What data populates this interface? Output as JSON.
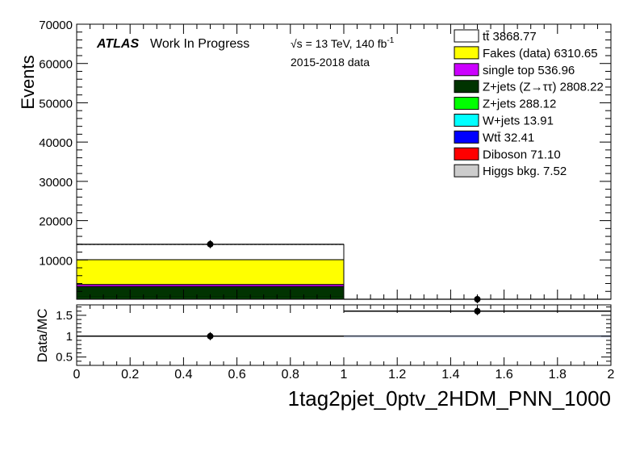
{
  "chart_data": [
    {
      "type": "bar",
      "stacked": true,
      "ylabel": "Events",
      "ylim": [
        0,
        70000
      ],
      "xlim": [
        0,
        2
      ],
      "yticks": [
        "10000",
        "20000",
        "30000",
        "40000",
        "50000",
        "60000",
        "70000"
      ],
      "bins": [
        [
          0,
          1
        ],
        [
          1,
          2
        ]
      ],
      "labels": {
        "atlas": "ATLAS",
        "status": "Work In Progress",
        "energy": "√s = 13 TeV, 140 fb",
        "energy_sup": "-1",
        "data_period": "2015-2018 data"
      },
      "series": [
        {
          "name": "Higgs bkg.",
          "yield": "7.52",
          "values": [
            7.52,
            0
          ],
          "color": "#cccccc"
        },
        {
          "name": "Diboson",
          "yield": "71.10",
          "values": [
            71.1,
            0
          ],
          "color": "#ff0000"
        },
        {
          "name": "Wtt̄",
          "yield": "32.41",
          "values": [
            32.41,
            0
          ],
          "color": "#0000ff"
        },
        {
          "name": "W+jets",
          "yield": "13.91",
          "values": [
            13.91,
            0
          ],
          "color": "#00ffff"
        },
        {
          "name": "Z+jets",
          "yield": "288.12",
          "values": [
            288.12,
            0
          ],
          "color": "#00ff00"
        },
        {
          "name": "Z+jets (Z→ττ)",
          "yield": "2808.22",
          "values": [
            2808.22,
            0
          ],
          "color": "#003300"
        },
        {
          "name": "single top",
          "yield": "536.96",
          "values": [
            536.96,
            0
          ],
          "color": "#cc00ff"
        },
        {
          "name": "Fakes (data)",
          "yield": "6310.65",
          "values": [
            6310.65,
            0
          ],
          "color": "#ffff00"
        },
        {
          "name": "tt̄",
          "yield": "3868.77",
          "values": [
            3868.77,
            0
          ],
          "color": "#ffffff"
        }
      ],
      "data_points": [
        {
          "x": 0.5,
          "y": 14000
        },
        {
          "x": 1.5,
          "y": 0
        }
      ],
      "legend_position": "top-right"
    },
    {
      "type": "scatter",
      "ylabel": "Data/MC",
      "ylim": [
        0.3,
        1.75
      ],
      "xlim": [
        0,
        2
      ],
      "yticks": [
        "0.5",
        "1",
        "1.5"
      ],
      "xticks": [
        "0",
        "0.2",
        "0.4",
        "0.6",
        "0.8",
        "1",
        "1.2",
        "1.4",
        "1.6",
        "1.8",
        "2"
      ],
      "xlabel": "1tag2pjet_0ptv_2HDM_PNN_1000",
      "points": [
        {
          "x": 0.5,
          "y": 1.0
        },
        {
          "x": 1.5,
          "y": 1.6
        }
      ]
    }
  ]
}
